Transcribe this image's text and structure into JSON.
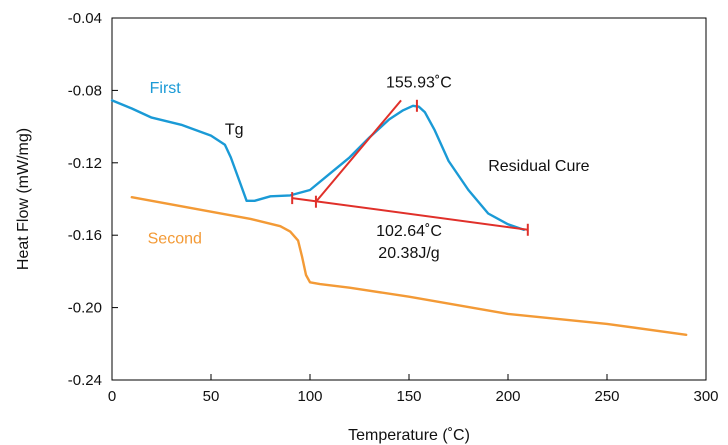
{
  "chart_data": {
    "type": "line",
    "xlabel": "Temperature (˚C)",
    "ylabel": "Heat Flow (mW/mg)",
    "xlim": [
      0,
      300
    ],
    "ylim": [
      -0.24,
      -0.04
    ],
    "xticks": [
      "0",
      "50",
      "100",
      "150",
      "200",
      "250",
      "300"
    ],
    "yticks": [
      "-0.04",
      "-0.08",
      "-0.12",
      "-0.16",
      "-0.20",
      "-0.24"
    ],
    "grid": false,
    "colors": {
      "first": "#1a9ad6",
      "second": "#f39a36",
      "construction": "#e0302a",
      "axis": "#000000"
    },
    "series": [
      {
        "name": "First",
        "x": [
          0,
          10,
          20,
          35,
          50,
          57,
          60,
          65,
          68,
          72,
          80,
          90,
          100,
          110,
          120,
          130,
          140,
          147,
          152,
          155,
          158,
          163,
          170,
          180,
          190,
          200,
          208
        ],
        "y": [
          -0.0855,
          -0.09,
          -0.095,
          -0.099,
          -0.105,
          -0.11,
          -0.117,
          -0.132,
          -0.141,
          -0.141,
          -0.1385,
          -0.138,
          -0.135,
          -0.126,
          -0.117,
          -0.106,
          -0.096,
          -0.091,
          -0.0885,
          -0.089,
          -0.092,
          -0.102,
          -0.119,
          -0.135,
          -0.148,
          -0.154,
          -0.157
        ]
      },
      {
        "name": "Second",
        "x": [
          10,
          30,
          50,
          70,
          85,
          90,
          94,
          96,
          98,
          100,
          105,
          120,
          150,
          200,
          250,
          290
        ],
        "y": [
          -0.139,
          -0.143,
          -0.147,
          -0.151,
          -0.155,
          -0.158,
          -0.163,
          -0.172,
          -0.182,
          -0.186,
          -0.187,
          -0.189,
          -0.194,
          -0.2035,
          -0.209,
          -0.215
        ]
      }
    ],
    "lines": [
      {
        "x": [
          91,
          210
        ],
        "y": [
          -0.1395,
          -0.157
        ]
      },
      {
        "x": [
          103,
          146
        ],
        "y": [
          -0.1415,
          -0.0855
        ]
      }
    ],
    "markers": [
      {
        "x": 91,
        "y": -0.1395
      },
      {
        "x": 103,
        "y": -0.1415
      },
      {
        "x": 154,
        "y": -0.0885
      },
      {
        "x": 210,
        "y": -0.157
      }
    ],
    "annotations": {
      "first_label": "First",
      "second_label": "Second",
      "tg": "Tg",
      "peak_temp": "155.93˚C",
      "residual_cure": "Residual Cure",
      "onset_temp": "102.64˚C",
      "enthalpy": "20.38J/g"
    }
  }
}
